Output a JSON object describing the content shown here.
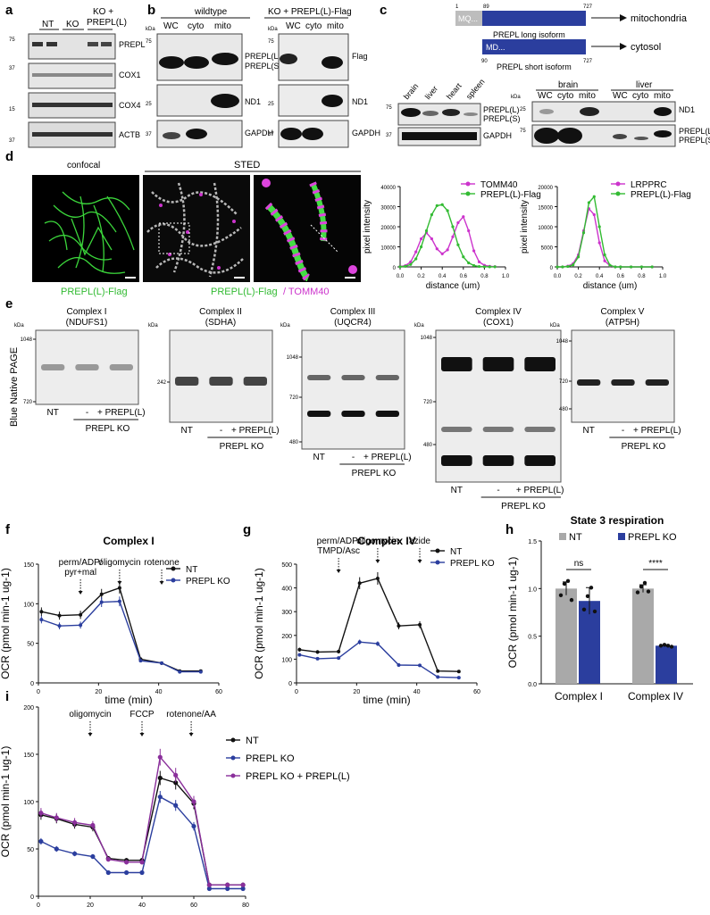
{
  "colors": {
    "nt": "#111111",
    "ko": "#2b3e9e",
    "rescue": "#8a2f9b",
    "tomm": "#cc33cc",
    "prepl": "#33bb33",
    "bar_nt": "#a9a9a9",
    "bar_ko": "#2b3e9e",
    "mito_box": "#2b3e9e"
  },
  "panels": {
    "a": "a",
    "b": "b",
    "c": "c",
    "d": "d",
    "e": "e",
    "f": "f",
    "g": "g",
    "h": "h",
    "i": "i"
  },
  "a": {
    "lanes": [
      "NT",
      "KO",
      "KO +",
      "PREPL(L)"
    ],
    "kda": [
      "75",
      "37",
      "15",
      "37"
    ],
    "rows": [
      "PREPL",
      "COX1",
      "COX4",
      "ACTB"
    ]
  },
  "b": {
    "group1": "wildtype",
    "group2": "KO + PREPL(L)-Flag",
    "lanes": [
      "WC",
      "cyto",
      "mito"
    ],
    "kda": "kDa",
    "left_rows": [
      "PREPL(L)",
      "PREPL(S)",
      "ND1",
      "GAPDH"
    ],
    "right_rows": [
      "Flag",
      "ND1",
      "GAPDH"
    ],
    "marks": [
      "75",
      "25",
      "37"
    ]
  },
  "c": {
    "nums_long": [
      "1",
      "89",
      "727"
    ],
    "nums_short": [
      "90",
      "727"
    ],
    "long_prefix": "MQ...",
    "short_prefix": "MD...",
    "long_label": "PREPL long isoform",
    "short_label": "PREPL short isoform",
    "mito": "mitochondria",
    "cyto": "cytosol",
    "tissues": [
      "brain",
      "liver",
      "heart",
      "spleen"
    ],
    "groups": [
      "brain",
      "liver"
    ],
    "lanes": [
      "WC",
      "cyto",
      "mito"
    ],
    "rows_left": [
      "PREPL(L)",
      "PREPL(S)",
      "GAPDH"
    ],
    "rows_right": [
      "ND1",
      "PREPL(L)",
      "PREPL(S)"
    ],
    "kda": "kDa",
    "marks": [
      "75",
      "37",
      "25",
      "75"
    ]
  },
  "d": {
    "confocal": "confocal",
    "sted": "STED",
    "cap1": "PREPL(L)-Flag",
    "cap2a": "PREPL(L)-Flag",
    "cap2b": "/ TOMM40"
  },
  "e": {
    "side": "Blue Native PAGE",
    "complexes": [
      {
        "title": "Complex I",
        "sub": "(NDUFS1)",
        "marks": [
          "1048",
          "720"
        ]
      },
      {
        "title": "Complex II",
        "sub": "(SDHA)",
        "marks": [
          "242"
        ]
      },
      {
        "title": "Complex III",
        "sub": "(UQCR4)",
        "marks": [
          "1048",
          "720",
          "480"
        ]
      },
      {
        "title": "Complex IV",
        "sub": "(COX1)",
        "marks": [
          "1048",
          "720",
          "480"
        ]
      },
      {
        "title": "Complex V",
        "sub": "(ATP5H)",
        "marks": [
          "1048",
          "720",
          "480"
        ]
      }
    ],
    "kda": "kDa",
    "lane_nt": "NT",
    "lane_minus": "-",
    "lane_rescue": "+ PREPL(L)",
    "ko": "PREPL KO"
  },
  "chart_data": [
    {
      "type": "line",
      "panel": "d1",
      "xlabel": "distance (um)",
      "ylabel": "pixel intensity",
      "xlim": [
        0,
        1.0
      ],
      "ylim": [
        0,
        40000
      ],
      "xticks": [
        "0.0",
        "0.2",
        "0.4",
        "0.6",
        "0.8",
        "1.0"
      ],
      "yticks": [
        "0",
        "10000",
        "20000",
        "30000",
        "40000"
      ],
      "series": [
        {
          "name": "TOMM40",
          "x": [
            0.0,
            0.05,
            0.1,
            0.15,
            0.2,
            0.25,
            0.3,
            0.35,
            0.4,
            0.45,
            0.5,
            0.55,
            0.6,
            0.65,
            0.7,
            0.75,
            0.8,
            0.85,
            0.9
          ],
          "values": [
            200,
            600,
            2500,
            7500,
            14000,
            17000,
            14000,
            9000,
            6500,
            8500,
            15000,
            22000,
            25000,
            18000,
            8000,
            2500,
            800,
            300,
            150
          ]
        },
        {
          "name": "PREPL(L)-Flag",
          "x": [
            0.0,
            0.05,
            0.1,
            0.15,
            0.2,
            0.25,
            0.3,
            0.35,
            0.4,
            0.45,
            0.5,
            0.55,
            0.6,
            0.65,
            0.7,
            0.75,
            0.8,
            0.85,
            0.9
          ],
          "values": [
            100,
            300,
            1200,
            4000,
            10000,
            18000,
            26000,
            30500,
            31000,
            28000,
            20000,
            11000,
            5000,
            2000,
            700,
            200,
            100,
            50,
            50
          ]
        }
      ]
    },
    {
      "type": "line",
      "panel": "d2",
      "xlabel": "distance (um)",
      "ylabel": "pixel intensity",
      "xlim": [
        0,
        1.0
      ],
      "ylim": [
        0,
        20000
      ],
      "xticks": [
        "0.0",
        "0.2",
        "0.4",
        "0.6",
        "0.8",
        "1.0"
      ],
      "yticks": [
        "0",
        "5000",
        "10000",
        "15000",
        "20000"
      ],
      "series": [
        {
          "name": "LRPPRC",
          "x": [
            0.0,
            0.05,
            0.1,
            0.15,
            0.2,
            0.25,
            0.3,
            0.35,
            0.4,
            0.45,
            0.5,
            0.55,
            0.6,
            0.7,
            0.8,
            0.9
          ],
          "values": [
            0,
            0,
            200,
            800,
            3000,
            9000,
            14500,
            13000,
            6000,
            1500,
            300,
            0,
            0,
            0,
            0,
            0
          ]
        },
        {
          "name": "PREPL(L)-Flag",
          "x": [
            0.0,
            0.05,
            0.1,
            0.15,
            0.2,
            0.25,
            0.3,
            0.35,
            0.4,
            0.45,
            0.5,
            0.55,
            0.6,
            0.7,
            0.8,
            0.9
          ],
          "values": [
            0,
            0,
            100,
            500,
            2500,
            8500,
            16000,
            17500,
            10000,
            3000,
            400,
            0,
            0,
            0,
            0,
            0
          ]
        }
      ]
    },
    {
      "type": "line",
      "panel": "f",
      "title": "Complex I",
      "xlabel": "time (min)",
      "ylabel": "OCR (pmol min-1 ug-1)",
      "xlim": [
        0,
        60
      ],
      "ylim": [
        0,
        150
      ],
      "xticks": [
        "0",
        "20",
        "40",
        "60"
      ],
      "yticks": [
        "0",
        "50",
        "100",
        "150"
      ],
      "annotations": [
        {
          "text": "perm/ADP/",
          "text2": "pyr+mal",
          "x": 14
        },
        {
          "text": "oligomycin",
          "x": 27
        },
        {
          "text": "rotenone",
          "x": 41
        }
      ],
      "series": [
        {
          "name": "NT",
          "x": [
            1,
            7,
            14,
            21,
            27,
            34,
            41,
            47,
            54
          ],
          "values": [
            90,
            85,
            86,
            112,
            120,
            30,
            25,
            15,
            15
          ]
        },
        {
          "name": "PREPL KO",
          "x": [
            1,
            7,
            14,
            21,
            27,
            34,
            41,
            47,
            54
          ],
          "values": [
            80,
            72,
            73,
            102,
            103,
            28,
            25,
            14,
            14
          ]
        }
      ]
    },
    {
      "type": "line",
      "panel": "g",
      "title": "Complex IV",
      "xlabel": "time (min)",
      "ylabel": "OCR (pmol min-1 ug-1)",
      "xlim": [
        0,
        60
      ],
      "ylim": [
        0,
        500
      ],
      "xticks": [
        "0",
        "20",
        "40",
        "60"
      ],
      "yticks": [
        "0",
        "100",
        "200",
        "300",
        "400",
        "500"
      ],
      "annotations": [
        {
          "text": "perm/ADP/",
          "text2": "TMPD/Asc",
          "x": 14
        },
        {
          "text": "oligomycin",
          "x": 27
        },
        {
          "text": "azide",
          "x": 41
        }
      ],
      "series": [
        {
          "name": "NT",
          "x": [
            1,
            7,
            14,
            21,
            27,
            34,
            41,
            47,
            54
          ],
          "values": [
            140,
            130,
            132,
            420,
            440,
            240,
            245,
            50,
            48
          ]
        },
        {
          "name": "PREPL KO",
          "x": [
            1,
            7,
            14,
            21,
            27,
            34,
            41,
            47,
            54
          ],
          "values": [
            118,
            102,
            105,
            172,
            165,
            75,
            74,
            25,
            22
          ]
        }
      ]
    },
    {
      "type": "bar",
      "panel": "h",
      "title": "State 3 respiration",
      "ylabel": "OCR (pmol min-1 ug-1)",
      "categories": [
        "Complex I",
        "Complex IV"
      ],
      "ylim": [
        0,
        1.5
      ],
      "yticks": [
        "0.0",
        "0.5",
        "1.0",
        "1.5"
      ],
      "series": [
        {
          "name": "NT",
          "values": [
            1.0,
            1.0
          ],
          "points": [
            [
              0.93,
              1.05,
              1.08,
              0.88
            ],
            [
              0.96,
              1.02,
              1.06,
              0.97
            ]
          ],
          "err": [
            0.07,
            0.04
          ]
        },
        {
          "name": "PREPL KO",
          "values": [
            0.87,
            0.4
          ],
          "points": [
            [
              0.78,
              0.92,
              1.01,
              0.76
            ],
            [
              0.4,
              0.41,
              0.4,
              0.39
            ]
          ],
          "err": [
            0.14,
            0.01
          ]
        }
      ],
      "sig": [
        "ns",
        "****"
      ]
    },
    {
      "type": "line",
      "panel": "i",
      "xlabel": "time (min)",
      "ylabel": "OCR (pmol min-1 ug-1)",
      "xlim": [
        0,
        80
      ],
      "ylim": [
        0,
        200
      ],
      "xticks": [
        "0",
        "20",
        "40",
        "60",
        "80"
      ],
      "yticks": [
        "0",
        "50",
        "100",
        "150",
        "200"
      ],
      "annotations": [
        {
          "text": "oligomycin",
          "x": 20
        },
        {
          "text": "FCCP",
          "x": 40
        },
        {
          "text": "rotenone/AA",
          "x": 59
        }
      ],
      "series": [
        {
          "name": "NT",
          "x": [
            1,
            7,
            14,
            21,
            27,
            34,
            40,
            47,
            53,
            60,
            66,
            73,
            79
          ],
          "values": [
            86,
            82,
            76,
            73,
            40,
            38,
            38,
            125,
            120,
            98,
            12,
            12,
            12
          ]
        },
        {
          "name": "PREPL KO",
          "x": [
            1,
            7,
            14,
            21,
            27,
            34,
            40,
            47,
            53,
            60,
            66,
            73,
            79
          ],
          "values": [
            58,
            50,
            45,
            42,
            25,
            25,
            25,
            105,
            96,
            74,
            8,
            8,
            8
          ]
        },
        {
          "name": "PREPL KO + PREPL(L)",
          "x": [
            1,
            7,
            14,
            21,
            27,
            34,
            40,
            47,
            53,
            60,
            66,
            73,
            79
          ],
          "values": [
            88,
            83,
            78,
            75,
            39,
            36,
            36,
            147,
            128,
            100,
            12,
            12,
            12
          ]
        }
      ]
    }
  ]
}
